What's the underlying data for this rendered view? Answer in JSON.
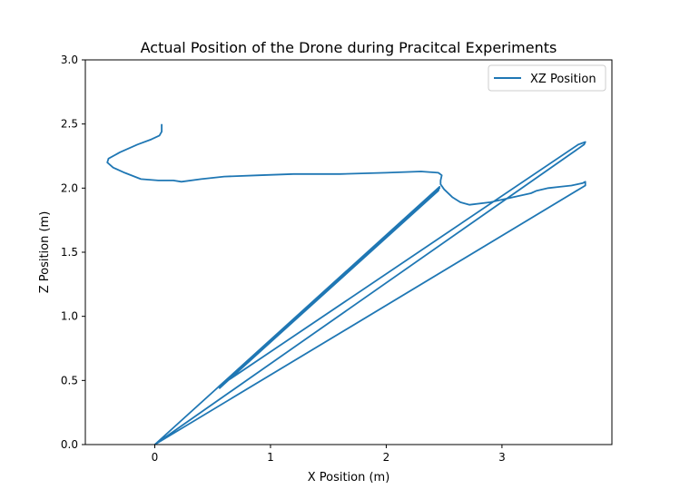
{
  "chart_data": {
    "type": "line",
    "title": "Actual Position of the Drone during Pracitcal Experiments",
    "xlabel": "X Position (m)",
    "ylabel": "Z Position (m)",
    "xlim": [
      -0.6,
      3.95
    ],
    "ylim": [
      0.0,
      3.0
    ],
    "xticks": [
      0,
      1,
      2,
      3
    ],
    "xtick_labels": [
      "0",
      "1",
      "2",
      "3"
    ],
    "yticks": [
      0.0,
      0.5,
      1.0,
      1.5,
      2.0,
      2.5,
      3.0
    ],
    "ytick_labels": [
      "0.0",
      "0.5",
      "1.0",
      "1.5",
      "2.0",
      "2.5",
      "3.0"
    ],
    "grid": false,
    "legend": {
      "position": "top-right"
    },
    "series": [
      {
        "name": "XZ Position",
        "color": "#1f77b4",
        "points": [
          [
            0.06,
            2.5
          ],
          [
            0.06,
            2.44
          ],
          [
            0.04,
            2.41
          ],
          [
            -0.03,
            2.38
          ],
          [
            -0.15,
            2.34
          ],
          [
            -0.3,
            2.28
          ],
          [
            -0.4,
            2.23
          ],
          [
            -0.41,
            2.2
          ],
          [
            -0.36,
            2.16
          ],
          [
            -0.26,
            2.12
          ],
          [
            -0.12,
            2.07
          ],
          [
            0.03,
            2.06
          ],
          [
            0.16,
            2.06
          ],
          [
            0.23,
            2.05
          ],
          [
            0.4,
            2.07
          ],
          [
            0.6,
            2.09
          ],
          [
            0.9,
            2.1
          ],
          [
            1.2,
            2.11
          ],
          [
            1.6,
            2.11
          ],
          [
            2.0,
            2.12
          ],
          [
            2.3,
            2.13
          ],
          [
            2.45,
            2.12
          ],
          [
            2.48,
            2.1
          ],
          [
            2.47,
            2.06
          ],
          [
            2.47,
            2.03
          ],
          [
            2.5,
            1.99
          ],
          [
            2.57,
            1.93
          ],
          [
            2.64,
            1.89
          ],
          [
            2.72,
            1.87
          ],
          [
            2.9,
            1.89
          ],
          [
            3.1,
            1.93
          ],
          [
            3.25,
            1.96
          ],
          [
            3.3,
            1.98
          ],
          [
            3.4,
            2.0
          ],
          [
            3.5,
            2.01
          ],
          [
            3.6,
            2.02
          ],
          [
            3.65,
            2.03
          ],
          [
            3.7,
            2.04
          ],
          [
            3.72,
            2.05
          ],
          [
            3.72,
            2.02
          ],
          [
            0.0,
            0.0
          ],
          [
            3.71,
            2.34
          ],
          [
            3.72,
            2.36
          ],
          [
            3.69,
            2.35
          ],
          [
            3.66,
            2.34
          ],
          [
            0.55,
            0.45
          ],
          [
            2.46,
            2.0
          ],
          [
            0.56,
            0.44
          ],
          [
            2.45,
            1.98
          ],
          [
            2.46,
            2.01
          ],
          [
            0.0,
            0.0
          ]
        ]
      }
    ]
  }
}
